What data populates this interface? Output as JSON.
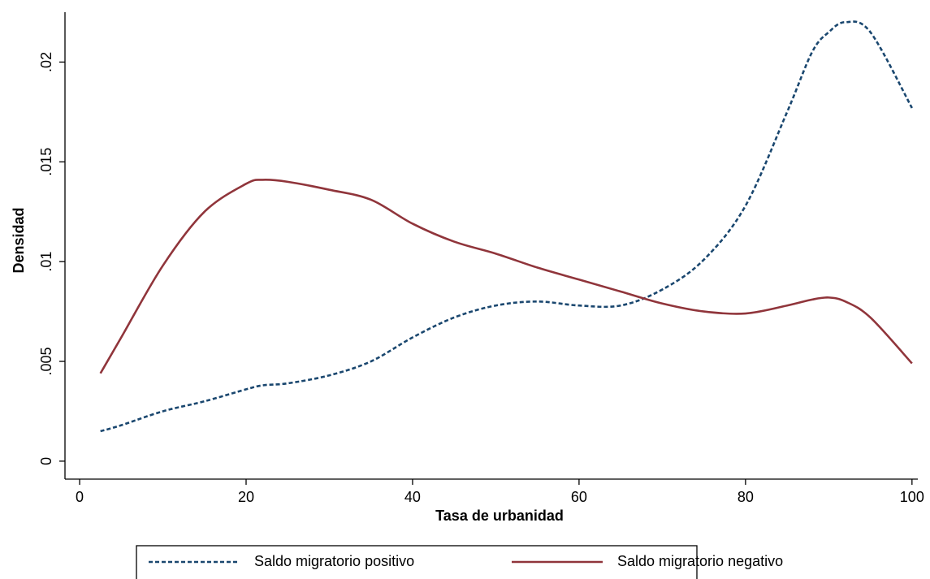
{
  "chart_data": {
    "type": "line",
    "x_label": "Tasa de urbanidad",
    "y_label": "Densidad",
    "x": [
      2.5,
      5,
      10,
      15,
      20,
      22,
      25,
      30,
      35,
      40,
      45,
      50,
      55,
      60,
      65,
      70,
      75,
      80,
      85,
      88,
      90,
      92,
      95,
      100
    ],
    "series": [
      {
        "name": "Saldo migratorio positivo",
        "color": "#1a476f",
        "dash": true,
        "values": [
          0.0015,
          0.0018,
          0.0025,
          0.003,
          0.0036,
          0.0038,
          0.0039,
          0.0043,
          0.005,
          0.0062,
          0.0072,
          0.0078,
          0.008,
          0.0078,
          0.0078,
          0.0086,
          0.0101,
          0.0128,
          0.0175,
          0.0205,
          0.0215,
          0.022,
          0.0215,
          0.0177
        ]
      },
      {
        "name": "Saldo migratorio negativo",
        "color": "#90353b",
        "dash": false,
        "values": [
          0.0044,
          0.0062,
          0.0098,
          0.0125,
          0.0139,
          0.0141,
          0.014,
          0.0136,
          0.0131,
          0.0119,
          0.011,
          0.0104,
          0.0097,
          0.0091,
          0.0085,
          0.0079,
          0.0075,
          0.0074,
          0.0078,
          0.0081,
          0.0082,
          0.008,
          0.0072,
          0.0049
        ]
      }
    ],
    "xlim": [
      -1.76,
      100.7
    ],
    "xticks": [
      0,
      20,
      40,
      60,
      80,
      100
    ],
    "ylim": [
      -0.0009,
      0.0225
    ],
    "yticks": [
      0,
      {
        "value": 0.005,
        "label": ".005"
      },
      {
        "value": 0.01,
        "label": ".01"
      },
      {
        "value": 0.015,
        "label": ".015"
      },
      {
        "value": 0.02,
        "label": ".02"
      }
    ],
    "grid": false,
    "legend": "bottom"
  }
}
